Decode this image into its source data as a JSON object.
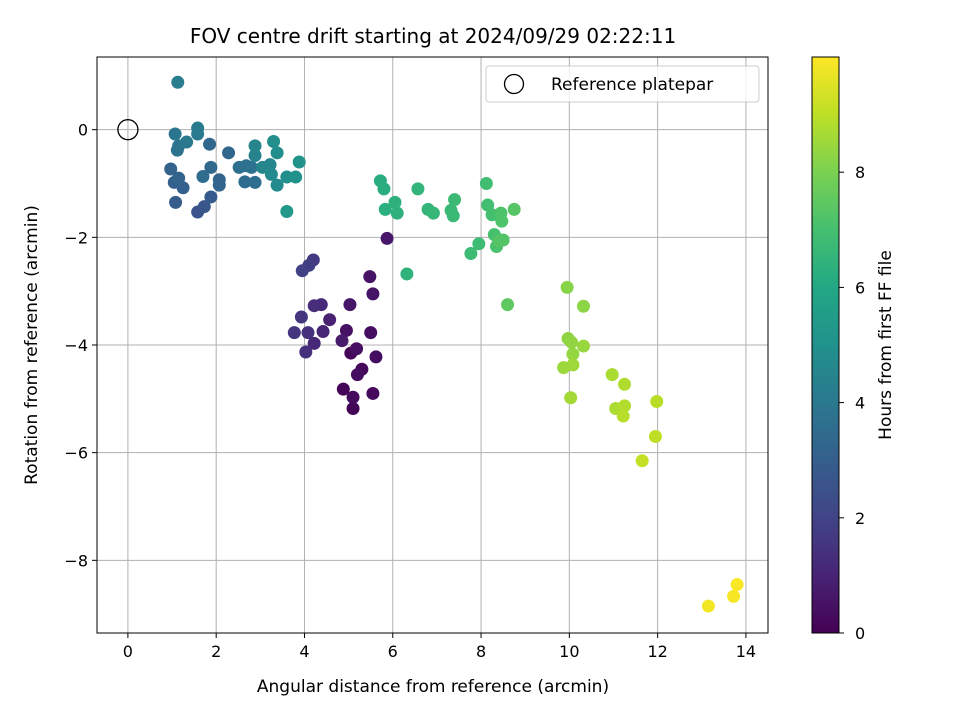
{
  "chart_data": {
    "type": "scatter",
    "title": "FOV centre drift starting at 2024/09/29 02:22:11",
    "xlabel": "Angular distance from reference (arcmin)",
    "ylabel": "Rotation from reference (arcmin)",
    "xlim": [
      -0.7,
      14.5
    ],
    "ylim": [
      -9.35,
      1.35
    ],
    "xticks": [
      0,
      2,
      4,
      6,
      8,
      10,
      12,
      14
    ],
    "yticks": [
      0,
      -2,
      -4,
      -6,
      -8
    ],
    "grid": true,
    "legend": {
      "position": "top-right",
      "entries": [
        "Reference platepar"
      ]
    },
    "reference_point": {
      "x": 0,
      "y": 0,
      "label": "Reference platepar"
    },
    "colorbar": {
      "label": "Hours from first FF file",
      "range": [
        0,
        10
      ],
      "ticks": [
        0,
        2,
        4,
        6,
        8
      ],
      "colormap": "viridis"
    },
    "points": [
      {
        "x": 5.1,
        "y": -5.18,
        "h": 0.1
      },
      {
        "x": 4.88,
        "y": -4.82,
        "h": 0.12
      },
      {
        "x": 5.05,
        "y": -4.15,
        "h": 0.15
      },
      {
        "x": 5.3,
        "y": -4.45,
        "h": 0.2
      },
      {
        "x": 5.55,
        "y": -4.9,
        "h": 0.25
      },
      {
        "x": 5.1,
        "y": -4.97,
        "h": 0.3
      },
      {
        "x": 5.2,
        "y": -4.55,
        "h": 0.33
      },
      {
        "x": 5.62,
        "y": -4.22,
        "h": 0.35
      },
      {
        "x": 5.5,
        "y": -3.77,
        "h": 0.38
      },
      {
        "x": 5.18,
        "y": -4.07,
        "h": 0.4
      },
      {
        "x": 4.95,
        "y": -3.73,
        "h": 0.45
      },
      {
        "x": 5.48,
        "y": -2.73,
        "h": 0.5
      },
      {
        "x": 5.55,
        "y": -3.05,
        "h": 0.55
      },
      {
        "x": 5.03,
        "y": -3.25,
        "h": 0.6
      },
      {
        "x": 5.87,
        "y": -2.02,
        "h": 0.65
      },
      {
        "x": 4.85,
        "y": -3.92,
        "h": 0.7
      },
      {
        "x": 4.57,
        "y": -3.53,
        "h": 0.9
      },
      {
        "x": 4.42,
        "y": -3.75,
        "h": 1.0
      },
      {
        "x": 4.22,
        "y": -3.97,
        "h": 1.1
      },
      {
        "x": 4.38,
        "y": -3.25,
        "h": 1.2
      },
      {
        "x": 4.22,
        "y": -3.27,
        "h": 1.3
      },
      {
        "x": 4.03,
        "y": -4.13,
        "h": 1.35
      },
      {
        "x": 4.08,
        "y": -3.77,
        "h": 1.4
      },
      {
        "x": 3.77,
        "y": -3.77,
        "h": 1.5
      },
      {
        "x": 3.93,
        "y": -3.48,
        "h": 1.6
      },
      {
        "x": 4.2,
        "y": -2.42,
        "h": 1.7
      },
      {
        "x": 4.1,
        "y": -2.52,
        "h": 1.8
      },
      {
        "x": 3.95,
        "y": -2.62,
        "h": 1.9
      },
      {
        "x": 1.58,
        "y": -1.53,
        "h": 2.6
      },
      {
        "x": 1.73,
        "y": -1.43,
        "h": 2.7
      },
      {
        "x": 1.88,
        "y": -1.25,
        "h": 2.8
      },
      {
        "x": 1.08,
        "y": -1.35,
        "h": 2.9
      },
      {
        "x": 1.25,
        "y": -1.08,
        "h": 3.0
      },
      {
        "x": 1.05,
        "y": -0.98,
        "h": 3.05
      },
      {
        "x": 0.97,
        "y": -0.73,
        "h": 3.1
      },
      {
        "x": 1.15,
        "y": -0.9,
        "h": 3.15
      },
      {
        "x": 2.07,
        "y": -1.03,
        "h": 3.2
      },
      {
        "x": 2.07,
        "y": -0.93,
        "h": 3.25
      },
      {
        "x": 2.28,
        "y": -0.43,
        "h": 3.3
      },
      {
        "x": 1.88,
        "y": -0.7,
        "h": 3.35
      },
      {
        "x": 1.85,
        "y": -0.27,
        "h": 3.4
      },
      {
        "x": 1.7,
        "y": -0.87,
        "h": 3.5
      },
      {
        "x": 2.65,
        "y": -0.97,
        "h": 3.55
      },
      {
        "x": 2.88,
        "y": -0.98,
        "h": 3.6
      },
      {
        "x": 2.52,
        "y": -0.7,
        "h": 3.65
      },
      {
        "x": 2.68,
        "y": -0.67,
        "h": 3.7
      },
      {
        "x": 2.8,
        "y": -0.7,
        "h": 3.75
      },
      {
        "x": 1.12,
        "y": -0.38,
        "h": 3.8
      },
      {
        "x": 1.15,
        "y": -0.3,
        "h": 3.85
      },
      {
        "x": 1.07,
        "y": -0.08,
        "h": 3.9
      },
      {
        "x": 1.33,
        "y": -0.23,
        "h": 4.0
      },
      {
        "x": 1.58,
        "y": -0.08,
        "h": 4.05
      },
      {
        "x": 1.58,
        "y": 0.03,
        "h": 4.1
      },
      {
        "x": 1.13,
        "y": 0.88,
        "h": 4.2
      },
      {
        "x": 2.88,
        "y": -0.48,
        "h": 4.4
      },
      {
        "x": 2.88,
        "y": -0.3,
        "h": 4.5
      },
      {
        "x": 3.05,
        "y": -0.7,
        "h": 4.55
      },
      {
        "x": 3.22,
        "y": -0.65,
        "h": 4.6
      },
      {
        "x": 3.25,
        "y": -0.83,
        "h": 4.7
      },
      {
        "x": 3.38,
        "y": -1.03,
        "h": 4.75
      },
      {
        "x": 3.38,
        "y": -0.43,
        "h": 4.85
      },
      {
        "x": 3.3,
        "y": -0.22,
        "h": 4.9
      },
      {
        "x": 3.6,
        "y": -0.88,
        "h": 4.95
      },
      {
        "x": 3.8,
        "y": -0.88,
        "h": 5.0
      },
      {
        "x": 3.88,
        "y": -0.6,
        "h": 5.1
      },
      {
        "x": 3.6,
        "y": -1.52,
        "h": 5.3
      },
      {
        "x": 5.72,
        "y": -0.95,
        "h": 6.2
      },
      {
        "x": 5.8,
        "y": -1.1,
        "h": 6.25
      },
      {
        "x": 5.83,
        "y": -1.48,
        "h": 6.3
      },
      {
        "x": 6.05,
        "y": -1.35,
        "h": 6.35
      },
      {
        "x": 6.1,
        "y": -1.55,
        "h": 6.4
      },
      {
        "x": 6.32,
        "y": -2.68,
        "h": 6.45
      },
      {
        "x": 6.57,
        "y": -1.1,
        "h": 6.5
      },
      {
        "x": 6.8,
        "y": -1.48,
        "h": 6.55
      },
      {
        "x": 6.92,
        "y": -1.55,
        "h": 6.6
      },
      {
        "x": 7.32,
        "y": -1.5,
        "h": 6.65
      },
      {
        "x": 7.37,
        "y": -1.6,
        "h": 6.7
      },
      {
        "x": 7.4,
        "y": -1.3,
        "h": 6.75
      },
      {
        "x": 7.77,
        "y": -2.3,
        "h": 6.8
      },
      {
        "x": 7.95,
        "y": -2.12,
        "h": 6.85
      },
      {
        "x": 8.12,
        "y": -1.0,
        "h": 6.9
      },
      {
        "x": 8.15,
        "y": -1.4,
        "h": 6.95
      },
      {
        "x": 8.25,
        "y": -1.58,
        "h": 7.0
      },
      {
        "x": 8.3,
        "y": -1.95,
        "h": 7.05
      },
      {
        "x": 8.35,
        "y": -2.17,
        "h": 7.1
      },
      {
        "x": 8.45,
        "y": -1.55,
        "h": 7.15
      },
      {
        "x": 8.47,
        "y": -1.7,
        "h": 7.2
      },
      {
        "x": 8.5,
        "y": -2.05,
        "h": 7.25
      },
      {
        "x": 8.4,
        "y": -2.07,
        "h": 7.3
      },
      {
        "x": 8.75,
        "y": -1.48,
        "h": 7.35
      },
      {
        "x": 8.6,
        "y": -3.25,
        "h": 7.5
      },
      {
        "x": 9.95,
        "y": -2.93,
        "h": 8.2
      },
      {
        "x": 10.32,
        "y": -3.28,
        "h": 8.25
      },
      {
        "x": 9.97,
        "y": -3.88,
        "h": 8.3
      },
      {
        "x": 10.05,
        "y": -3.95,
        "h": 8.35
      },
      {
        "x": 10.08,
        "y": -4.17,
        "h": 8.4
      },
      {
        "x": 10.32,
        "y": -4.02,
        "h": 8.45
      },
      {
        "x": 9.87,
        "y": -4.42,
        "h": 8.5
      },
      {
        "x": 10.08,
        "y": -4.37,
        "h": 8.55
      },
      {
        "x": 10.03,
        "y": -4.98,
        "h": 8.6
      },
      {
        "x": 10.97,
        "y": -4.55,
        "h": 8.7
      },
      {
        "x": 11.05,
        "y": -5.18,
        "h": 8.75
      },
      {
        "x": 11.25,
        "y": -4.73,
        "h": 8.8
      },
      {
        "x": 11.25,
        "y": -5.13,
        "h": 8.85
      },
      {
        "x": 11.22,
        "y": -5.32,
        "h": 8.9
      },
      {
        "x": 11.98,
        "y": -5.05,
        "h": 8.95
      },
      {
        "x": 11.95,
        "y": -5.7,
        "h": 9.0
      },
      {
        "x": 11.65,
        "y": -6.15,
        "h": 9.1
      },
      {
        "x": 13.15,
        "y": -8.85,
        "h": 9.85
      },
      {
        "x": 13.72,
        "y": -8.67,
        "h": 9.9
      },
      {
        "x": 13.8,
        "y": -8.45,
        "h": 9.95
      }
    ]
  }
}
